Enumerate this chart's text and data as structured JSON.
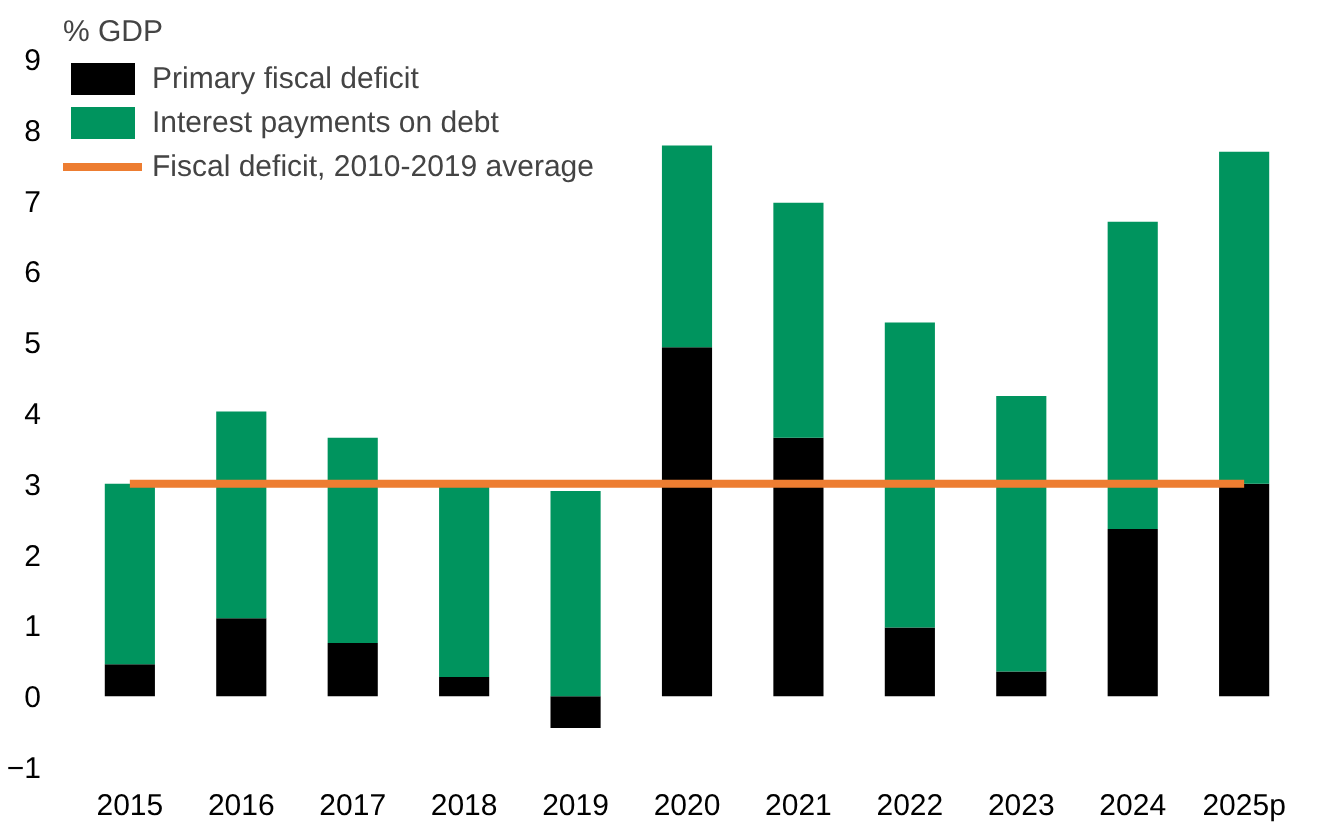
{
  "chart_data": {
    "type": "bar",
    "stacked": true,
    "ylabel": "% GDP",
    "categories": [
      "2015",
      "2016",
      "2017",
      "2018",
      "2019",
      "2020",
      "2021",
      "2022",
      "2023",
      "2024",
      "2025p"
    ],
    "series": [
      {
        "name": "Primary fiscal deficit",
        "color": "#000000",
        "values": [
          0.45,
          1.1,
          0.75,
          0.27,
          -0.45,
          4.93,
          3.65,
          0.97,
          0.35,
          2.36,
          3.0
        ]
      },
      {
        "name": "Interest payments on debt",
        "color": "#00945e",
        "values": [
          2.55,
          2.92,
          2.9,
          2.78,
          2.9,
          2.85,
          3.32,
          4.31,
          3.89,
          4.34,
          4.69
        ]
      },
      {
        "name": "Fiscal deficit, 2010-2019 average",
        "color": "#ed7d31",
        "type": "line",
        "values": [
          3,
          3,
          3,
          3,
          3,
          3,
          3,
          3,
          3,
          3,
          3
        ]
      }
    ],
    "ylim": [
      -1,
      9
    ],
    "yticks": [
      -1,
      0,
      1,
      2,
      3,
      4,
      5,
      6,
      7,
      8,
      9
    ],
    "grid": false,
    "legend": "top left"
  }
}
